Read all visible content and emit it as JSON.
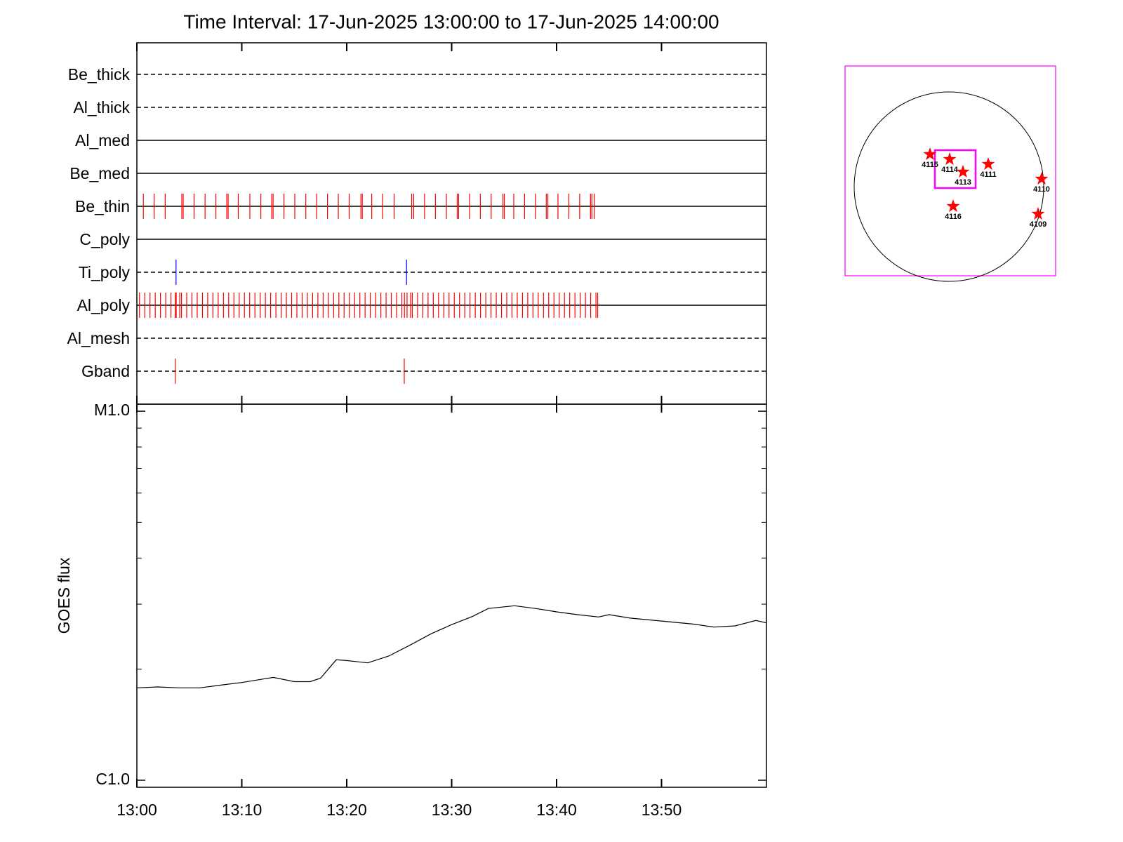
{
  "chart_data": [
    {
      "type": "event",
      "title": "Time Interval: 17-Jun-2025 13:00:00 to 17-Jun-2025 14:00:00",
      "xlim": [
        "13:00:00",
        "14:00:00"
      ],
      "xticks": [
        "13:00",
        "13:10",
        "13:20",
        "13:30",
        "13:40",
        "13:50"
      ],
      "channels": [
        {
          "name": "Be_thick",
          "style": "dashed"
        },
        {
          "name": "Al_thick",
          "style": "dashed"
        },
        {
          "name": "Al_med",
          "style": "solid"
        },
        {
          "name": "Be_med",
          "style": "solid"
        },
        {
          "name": "Be_thin",
          "style": "solid",
          "events": {
            "color": "#ff0000",
            "x": [
              "13:00:37",
              "13:01:39",
              "13:02:42",
              "13:04:17",
              "13:04:25",
              "13:05:27",
              "13:06:30",
              "13:07:32",
              "13:08:34",
              "13:08:42",
              "13:09:40",
              "13:10:46",
              "13:11:49",
              "13:12:51",
              "13:12:59",
              "13:14:01",
              "13:15:03",
              "13:16:06",
              "13:17:08",
              "13:18:10",
              "13:19:12",
              "13:20:14",
              "13:21:21",
              "13:21:29",
              "13:22:23",
              "13:23:25",
              "13:24:31",
              "13:26:11",
              "13:26:23",
              "13:27:25",
              "13:28:27",
              "13:29:30",
              "13:30:32",
              "13:30:40",
              "13:31:42",
              "13:32:44",
              "13:33:46",
              "13:34:53",
              "13:35:01",
              "13:35:55",
              "13:36:57",
              "13:37:59",
              "13:39:01",
              "13:39:10",
              "13:40:08",
              "13:41:10",
              "13:42:12",
              "13:43:14",
              "13:43:22",
              "13:43:35"
            ]
          }
        },
        {
          "name": "C_poly",
          "style": "solid"
        },
        {
          "name": "Ti_poly",
          "style": "dashed",
          "events": {
            "color": "#0000ff",
            "x": [
              "13:03:44",
              "13:25:42"
            ]
          }
        },
        {
          "name": "Al_poly",
          "style": "solid",
          "events": {
            "color": "#ff0000",
            "x": [
              "13:00:15",
              "13:00:45",
              "13:01:15",
              "13:01:45",
              "13:02:15",
              "13:02:45",
              "13:03:15",
              "13:03:40",
              "13:03:45",
              "13:04:05",
              "13:04:15",
              "13:04:45",
              "13:05:15",
              "13:05:45",
              "13:06:15",
              "13:06:45",
              "13:07:15",
              "13:07:45",
              "13:08:15",
              "13:08:45",
              "13:09:15",
              "13:09:45",
              "13:10:15",
              "13:10:45",
              "13:11:15",
              "13:11:45",
              "13:12:15",
              "13:12:45",
              "13:13:15",
              "13:13:45",
              "13:14:15",
              "13:14:45",
              "13:15:15",
              "13:15:45",
              "13:16:15",
              "13:16:45",
              "13:17:15",
              "13:17:45",
              "13:18:15",
              "13:18:45",
              "13:19:15",
              "13:19:45",
              "13:20:15",
              "13:20:45",
              "13:21:15",
              "13:21:45",
              "13:22:15",
              "13:22:45",
              "13:23:15",
              "13:23:45",
              "13:24:15",
              "13:24:45",
              "13:25:15",
              "13:25:30",
              "13:25:45",
              "13:26:05",
              "13:26:15",
              "13:26:45",
              "13:27:15",
              "13:27:45",
              "13:28:15",
              "13:28:45",
              "13:29:15",
              "13:29:45",
              "13:30:15",
              "13:30:45",
              "13:31:15",
              "13:31:45",
              "13:32:15",
              "13:32:45",
              "13:33:15",
              "13:33:45",
              "13:34:15",
              "13:34:45",
              "13:35:15",
              "13:35:45",
              "13:36:15",
              "13:36:45",
              "13:37:15",
              "13:37:45",
              "13:38:15",
              "13:38:45",
              "13:39:15",
              "13:39:45",
              "13:40:15",
              "13:40:45",
              "13:41:15",
              "13:41:45",
              "13:42:15",
              "13:42:45",
              "13:43:15",
              "13:43:45",
              "13:43:55"
            ]
          }
        },
        {
          "name": "Al_mesh",
          "style": "dashed"
        },
        {
          "name": "Gband",
          "style": "dashed",
          "events": {
            "color": "#ff0000",
            "x": [
              "13:03:40",
              "13:25:29"
            ]
          }
        }
      ]
    },
    {
      "type": "line",
      "ylabel": "GOES flux",
      "ylog": true,
      "xlim": [
        "13:00:00",
        "14:00:00"
      ],
      "xticks": [
        "13:00",
        "13:10",
        "13:20",
        "13:30",
        "13:40",
        "13:50"
      ],
      "ylim": [
        9.57e-07,
        1.045e-05
      ],
      "yticks": [
        {
          "value": 1e-06,
          "label": "C1.0"
        },
        {
          "value": 1e-05,
          "label": "M1.0"
        }
      ],
      "yminorticks": [
        2e-06,
        3e-06,
        4e-06,
        5e-06,
        6e-06,
        7e-06,
        8e-06,
        9e-06
      ],
      "x": [
        "13:00:00",
        "13:02:00",
        "13:04:00",
        "13:06:00",
        "13:08:00",
        "13:10:00",
        "13:12:00",
        "13:13:00",
        "13:15:00",
        "13:16:30",
        "13:17:30",
        "13:19:00",
        "13:20:00",
        "13:22:00",
        "13:24:00",
        "13:26:00",
        "13:28:00",
        "13:30:00",
        "13:32:00",
        "13:33:30",
        "13:36:00",
        "13:38:00",
        "13:40:00",
        "13:42:00",
        "13:44:00",
        "13:45:00",
        "13:47:00",
        "13:50:00",
        "13:53:00",
        "13:55:00",
        "13:57:00",
        "13:59:00",
        "14:00:00"
      ],
      "series": [
        {
          "name": "GOES",
          "color": "#000000",
          "values": [
            1.78e-06,
            1.79e-06,
            1.78e-06,
            1.78e-06,
            1.81e-06,
            1.84e-06,
            1.88e-06,
            1.9e-06,
            1.85e-06,
            1.85e-06,
            1.89e-06,
            2.12e-06,
            2.11e-06,
            2.08e-06,
            2.17e-06,
            2.32e-06,
            2.49e-06,
            2.64e-06,
            2.78e-06,
            2.92e-06,
            2.97e-06,
            2.92e-06,
            2.86e-06,
            2.81e-06,
            2.77e-06,
            2.81e-06,
            2.75e-06,
            2.7e-06,
            2.65e-06,
            2.6e-06,
            2.62e-06,
            2.71e-06,
            2.67e-06
          ]
        }
      ]
    }
  ],
  "map": {
    "regions": [
      "4115",
      "4114",
      "4113",
      "4111",
      "4110",
      "4116",
      "4109"
    ]
  }
}
